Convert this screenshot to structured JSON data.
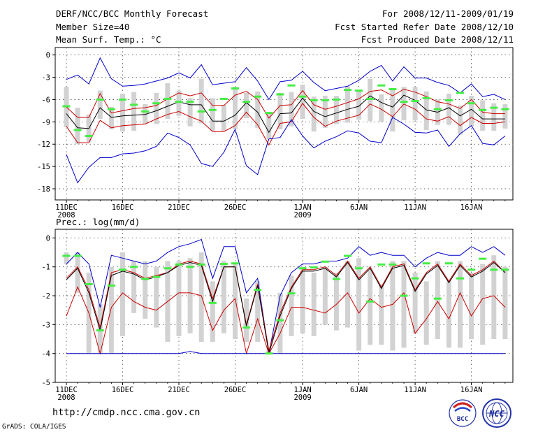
{
  "header": {
    "title": "DERF/NCC/BCC Monthly Forecast",
    "member_size": "Member Size=40",
    "variable_top": "Mean Surf. Temp.: °C",
    "period": "For 2008/12/11-2009/01/19",
    "start_date": "Fcst Started Refer Date 2008/12/10",
    "produced_date": "Fcst Produced Date 2008/12/11",
    "variable_bottom": "Prec.: log(mm/d)"
  },
  "footer": {
    "url": "http://cmdp.ncc.cma.gov.cn",
    "credit": "GrADS: COLA/IGES",
    "logo_bcc": "BCC",
    "logo_ncc": "NCC"
  },
  "colors": {
    "blue": "#0000cc",
    "red": "#cc0000",
    "black": "#000000",
    "green": "#44ee44",
    "box": "#d2d2d2"
  },
  "chart_data": [
    {
      "type": "line",
      "title": "Mean Surf. Temp.: °C",
      "x_days": 40,
      "xtick_labels": [
        "11DEC",
        "16DEC",
        "21DEC",
        "26DEC",
        "1JAN",
        "6JAN",
        "11JAN",
        "16JAN"
      ],
      "xtick_sublabels": [
        "2008",
        "",
        "",
        "",
        "2009",
        "",
        "",
        ""
      ],
      "xtick_day_index": [
        0,
        5,
        10,
        15,
        21,
        26,
        31,
        36
      ],
      "ylim": [
        -19.5,
        1
      ],
      "yticks": [
        0,
        -3,
        -6,
        -9,
        -12,
        -15,
        -18
      ],
      "series": [
        {
          "name": "max",
          "color": "blue",
          "values": [
            -3.3,
            -2.7,
            -3.9,
            -0.4,
            -3.2,
            -4.2,
            -4.1,
            -3.9,
            -3.5,
            -3.1,
            -2.4,
            -3.1,
            -1.3,
            -4.0,
            -3.8,
            -3.6,
            -1.7,
            -3.5,
            -6.0,
            -3.6,
            -3.4,
            -2.2,
            -3.7,
            -4.8,
            -4.5,
            -4.2,
            -3.4,
            -2.2,
            -1.4,
            -3.5,
            -1.6,
            -3.1,
            -3.1,
            -3.7,
            -4.1,
            -5.1,
            -3.9,
            -5.6,
            -5.3,
            -6.0
          ]
        },
        {
          "name": "upper",
          "color": "red",
          "values": [
            -7.0,
            -8.4,
            -8.4,
            -5.2,
            -7.8,
            -7.5,
            -7.2,
            -7.1,
            -6.8,
            -5.9,
            -5.1,
            -5.5,
            -5.1,
            -6.8,
            -6.8,
            -5.4,
            -4.9,
            -6.0,
            -8.5,
            -6.8,
            -6.7,
            -4.8,
            -6.7,
            -7.3,
            -6.9,
            -6.4,
            -5.9,
            -4.9,
            -4.7,
            -5.5,
            -4.6,
            -5.0,
            -5.6,
            -6.3,
            -6.6,
            -7.2,
            -6.0,
            -7.7,
            -7.9,
            -7.9
          ]
        },
        {
          "name": "median",
          "color": "black",
          "values": [
            -7.9,
            -9.8,
            -9.9,
            -7.1,
            -8.4,
            -8.2,
            -8.1,
            -8.0,
            -7.5,
            -6.9,
            -6.3,
            -6.7,
            -6.7,
            -8.9,
            -8.9,
            -8.1,
            -6.4,
            -7.7,
            -10.4,
            -7.9,
            -7.8,
            -5.8,
            -7.6,
            -8.3,
            -7.8,
            -7.3,
            -6.9,
            -5.5,
            -6.4,
            -7.0,
            -5.4,
            -6.1,
            -7.4,
            -7.7,
            -7.1,
            -8.2,
            -7.3,
            -8.6,
            -8.6,
            -8.6
          ]
        },
        {
          "name": "lower",
          "color": "red",
          "values": [
            -9.6,
            -11.8,
            -11.8,
            -8.8,
            -9.8,
            -9.5,
            -9.4,
            -9.3,
            -8.6,
            -8.0,
            -7.6,
            -8.3,
            -8.9,
            -10.3,
            -10.3,
            -9.5,
            -7.7,
            -9.4,
            -12.1,
            -9.2,
            -9.0,
            -6.5,
            -8.4,
            -9.6,
            -8.9,
            -8.5,
            -8.1,
            -6.6,
            -7.3,
            -8.3,
            -6.6,
            -7.3,
            -8.6,
            -8.9,
            -8.3,
            -9.5,
            -8.4,
            -9.2,
            -9.2,
            -9.0
          ]
        },
        {
          "name": "min",
          "color": "blue",
          "values": [
            -13.4,
            -17.2,
            -15.1,
            -13.8,
            -13.8,
            -13.3,
            -13.2,
            -12.9,
            -12.3,
            -10.5,
            -11.1,
            -12.1,
            -14.6,
            -15.0,
            -13.1,
            -10.0,
            -14.9,
            -16.1,
            -11.3,
            -11.1,
            -8.7,
            -10.9,
            -12.5,
            -11.6,
            -11.0,
            -10.2,
            -10.5,
            -11.6,
            -11.8,
            -8.4,
            -9.3,
            -10.4,
            -10.5,
            -10.1,
            -12.3,
            -10.6,
            -9.5,
            -11.9,
            -12.1,
            -10.9
          ]
        }
      ],
      "boxes": [
        [
          -4.3,
          -9.7
        ],
        [
          -7.1,
          -12.0
        ],
        [
          -8.0,
          -11.7
        ],
        [
          -4.8,
          -8.6
        ],
        [
          -7.0,
          -10.0
        ],
        [
          -5.2,
          -10.3
        ],
        [
          -5.0,
          -10.2
        ],
        [
          -6.6,
          -9.3
        ],
        [
          -5.1,
          -9.3
        ],
        [
          -3.8,
          -8.6
        ],
        [
          -4.8,
          -8.2
        ],
        [
          -5.8,
          -9.6
        ],
        [
          -3.2,
          -9.2
        ],
        [
          -5.8,
          -10.2
        ],
        [
          -6.7,
          -10.2
        ],
        [
          -4.3,
          -10.0
        ],
        [
          -5.1,
          -8.5
        ],
        [
          -4.9,
          -9.8
        ],
        [
          -7.7,
          -11.3
        ],
        [
          -5.1,
          -10.0
        ],
        [
          -5.0,
          -9.6
        ],
        [
          -4.0,
          -8.6
        ],
        [
          -5.6,
          -10.3
        ],
        [
          -5.5,
          -9.8
        ],
        [
          -5.5,
          -9.3
        ],
        [
          -4.2,
          -9.1
        ],
        [
          -4.8,
          -8.7
        ],
        [
          -3.2,
          -8.9
        ],
        [
          -5.3,
          -9.0
        ],
        [
          -4.6,
          -10.3
        ],
        [
          -4.3,
          -8.8
        ],
        [
          -4.3,
          -8.8
        ],
        [
          -4.9,
          -10.1
        ],
        [
          -6.0,
          -9.4
        ],
        [
          -5.2,
          -9.4
        ],
        [
          -6.8,
          -10.7
        ],
        [
          -5.5,
          -9.6
        ],
        [
          -6.1,
          -10.2
        ],
        [
          -6.5,
          -10.2
        ],
        [
          -6.6,
          -9.9
        ]
      ],
      "observed": [
        -6.9,
        -10.1,
        -10.9,
        -6.0,
        -7.3,
        -6.0,
        -6.7,
        -7.6,
        -6.5,
        -5.9,
        -6.3,
        -6.3,
        -7.6,
        -7.4,
        -5.9,
        -4.5,
        -6.3,
        -5.6,
        -7.8,
        -5.3,
        -4.1,
        -5.6,
        -6.1,
        -6.1,
        -6.0,
        -4.7,
        -4.8,
        -5.9,
        -4.1,
        -4.6,
        -6.3,
        -6.2,
        -5.8,
        -7.3,
        -6.1,
        -5.1,
        -6.5,
        -7.4,
        -7.1,
        -7.3
      ]
    },
    {
      "type": "line",
      "title": "Prec.: log(mm/d)",
      "x_days": 40,
      "xtick_labels": [
        "11DEC",
        "16DEC",
        "21DEC",
        "26DEC",
        "1JAN",
        "6JAN",
        "11JAN",
        "16JAN"
      ],
      "xtick_sublabels": [
        "2008",
        "",
        "",
        "",
        "2009",
        "",
        "",
        ""
      ],
      "xtick_day_index": [
        0,
        5,
        10,
        15,
        21,
        26,
        31,
        36
      ],
      "ylim": [
        -5,
        0.3
      ],
      "yticks": [
        0,
        -1,
        -2,
        -3,
        -4,
        -5
      ],
      "series": [
        {
          "name": "max",
          "color": "blue",
          "values": [
            -0.9,
            -0.5,
            -0.9,
            -2.4,
            -0.6,
            -0.7,
            -0.8,
            -0.9,
            -0.8,
            -0.5,
            -0.3,
            -0.2,
            -0.05,
            -1.4,
            -0.3,
            -0.3,
            -1.9,
            -1.4,
            -4.0,
            -2.0,
            -1.2,
            -0.9,
            -0.9,
            -0.8,
            -0.8,
            -0.7,
            -0.3,
            -0.6,
            -0.5,
            -0.6,
            -0.6,
            -1.0,
            -0.7,
            -0.5,
            -0.6,
            -0.6,
            -0.3,
            -0.5,
            -0.3,
            -0.6
          ]
        },
        {
          "name": "upper",
          "color": "red",
          "values": [
            -1.4,
            -1.0,
            -1.8,
            -3.1,
            -1.2,
            -1.1,
            -1.2,
            -1.4,
            -1.3,
            -1.2,
            -0.9,
            -0.8,
            -0.9,
            -2.1,
            -1.0,
            -1.0,
            -3.0,
            -1.6,
            -3.9,
            -2.6,
            -1.7,
            -1.1,
            -1.1,
            -1.0,
            -1.3,
            -0.8,
            -1.4,
            -1.0,
            -1.7,
            -1.0,
            -0.9,
            -1.8,
            -1.2,
            -0.9,
            -1.5,
            -0.9,
            -1.3,
            -1.1,
            -0.8,
            -1.2
          ]
        },
        {
          "name": "median",
          "color": "black",
          "values": [
            -1.45,
            -1.05,
            -1.9,
            -3.2,
            -1.3,
            -1.15,
            -1.25,
            -1.45,
            -1.35,
            -1.2,
            -0.95,
            -0.85,
            -0.95,
            -2.2,
            -1.0,
            -1.0,
            -3.05,
            -1.65,
            -4.0,
            -2.7,
            -1.75,
            -1.15,
            -1.15,
            -1.05,
            -1.35,
            -0.85,
            -1.45,
            -1.05,
            -1.75,
            -1.05,
            -0.95,
            -1.85,
            -1.25,
            -0.95,
            -1.55,
            -0.95,
            -1.35,
            -1.15,
            -0.85,
            -1.2
          ]
        },
        {
          "name": "lower",
          "color": "red",
          "values": [
            -2.7,
            -1.7,
            -2.6,
            -4.0,
            -2.4,
            -1.9,
            -2.2,
            -2.4,
            -2.5,
            -2.2,
            -1.9,
            -1.9,
            -2.0,
            -3.2,
            -2.5,
            -2.1,
            -4.0,
            -2.8,
            -4.0,
            -3.3,
            -2.4,
            -2.4,
            -2.5,
            -2.6,
            -2.3,
            -1.9,
            -2.6,
            -2.1,
            -2.4,
            -2.3,
            -1.9,
            -3.3,
            -2.8,
            -2.2,
            -2.8,
            -1.9,
            -2.7,
            -2.1,
            -2.0,
            -2.4
          ]
        },
        {
          "name": "min",
          "color": "blue",
          "values": [
            -4.0,
            -4.0,
            -4.0,
            -4.0,
            -4.0,
            -4.0,
            -4.0,
            -4.0,
            -4.0,
            -4.0,
            -4.0,
            -3.93,
            -4.0,
            -4.0,
            -4.0,
            -4.0,
            -4.0,
            -4.0,
            -4.0,
            -4.0,
            -4.0,
            -4.0,
            -4.0,
            -4.0,
            -4.0,
            -4.0,
            -4.0,
            -4.0,
            -4.0,
            -4.0,
            -4.0,
            -4.0,
            -4.0,
            -4.0,
            -4.0,
            -4.0,
            -4.0,
            -4.0,
            -4.0,
            -4.0
          ]
        }
      ],
      "boxes": [
        [
          -0.5,
          -0.9
        ],
        [
          -0.5,
          -1.9
        ],
        [
          -1.2,
          -4.0
        ],
        [
          -2.3,
          -4.0
        ],
        [
          -1.0,
          -4.0
        ],
        [
          -0.5,
          -3.4
        ],
        [
          -0.8,
          -2.6
        ],
        [
          -0.8,
          -2.8
        ],
        [
          -1.0,
          -3.1
        ],
        [
          -0.8,
          -3.6
        ],
        [
          -0.8,
          -3.4
        ],
        [
          -0.7,
          -3.3
        ],
        [
          -0.5,
          -3.6
        ],
        [
          -1.5,
          -3.6
        ],
        [
          -0.8,
          -3.3
        ],
        [
          -0.9,
          -3.5
        ],
        [
          -2.1,
          -3.6
        ],
        [
          -1.5,
          -3.6
        ],
        [
          -3.9,
          -4.0
        ],
        [
          -1.9,
          -4.0
        ],
        [
          -1.3,
          -3.4
        ],
        [
          -1.0,
          -3.3
        ],
        [
          -1.2,
          -3.4
        ],
        [
          -1.0,
          -3.0
        ],
        [
          -1.2,
          -3.2
        ],
        [
          -0.8,
          -3.1
        ],
        [
          -0.7,
          -3.9
        ],
        [
          -1.1,
          -3.7
        ],
        [
          -1.6,
          -3.7
        ],
        [
          -0.8,
          -3.9
        ],
        [
          -0.8,
          -3.8
        ],
        [
          -1.2,
          -3.3
        ],
        [
          -1.5,
          -3.7
        ],
        [
          -0.8,
          -3.5
        ],
        [
          -1.5,
          -3.8
        ],
        [
          -0.8,
          -3.8
        ],
        [
          -1.2,
          -3.5
        ],
        [
          -0.9,
          -3.7
        ],
        [
          -0.6,
          -3.5
        ],
        [
          -1.0,
          -3.5
        ]
      ],
      "observed": [
        -0.62,
        -0.62,
        -1.6,
        -3.2,
        -1.65,
        -1.1,
        -1.0,
        -1.42,
        -1.35,
        -1.05,
        -0.92,
        -1.0,
        -0.92,
        -2.25,
        -0.9,
        -0.88,
        -3.1,
        -1.8,
        -4.0,
        -2.85,
        -1.92,
        -1.05,
        -1.02,
        -0.82,
        -1.42,
        -0.62,
        -1.05,
        -2.2,
        -0.92,
        -0.92,
        -2.0,
        -1.4,
        -0.88,
        -2.1,
        -0.88,
        -1.4,
        -1.1,
        -0.72,
        -1.1,
        -1.1
      ]
    }
  ]
}
